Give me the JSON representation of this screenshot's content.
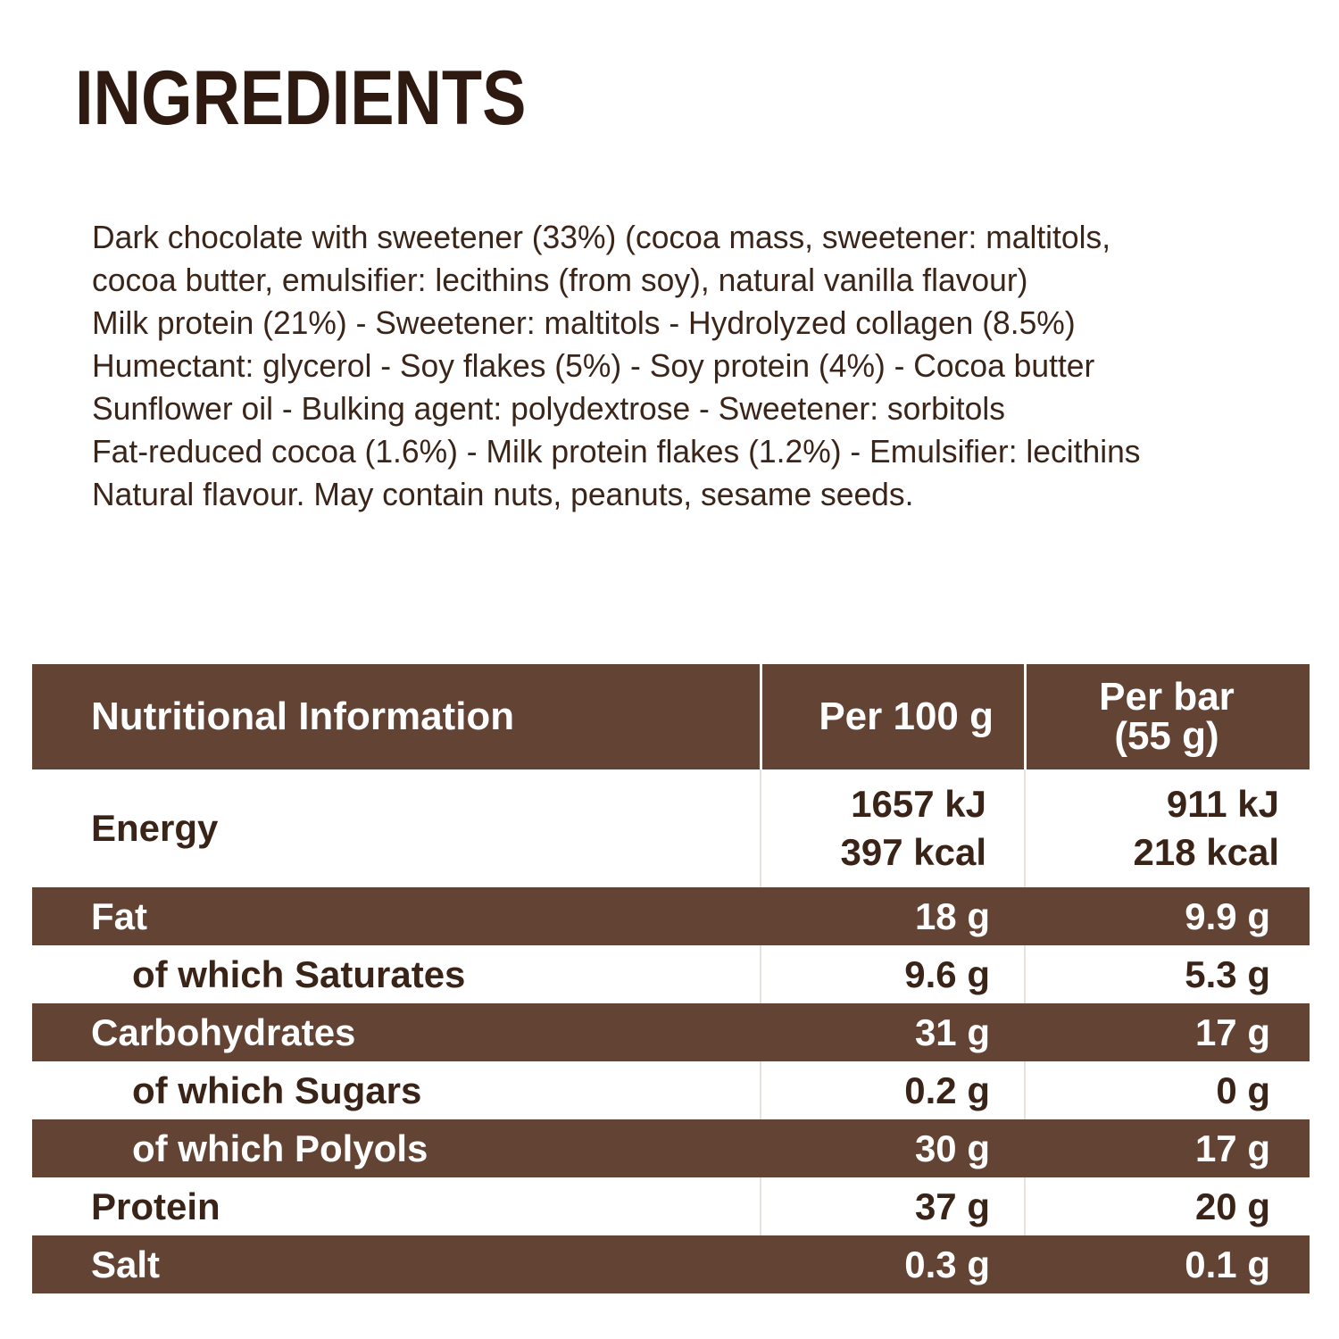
{
  "title": "INGREDIENTS",
  "ingredients_lines": [
    "Dark chocolate with sweetener (33%) (cocoa mass, sweetener: maltitols,",
    "cocoa butter, emulsifier: lecithins (from soy), natural vanilla flavour)",
    "Milk protein (21%) - Sweetener: maltitols - Hydrolyzed collagen (8.5%)",
    "Humectant: glycerol - Soy flakes (5%) - Soy protein (4%) - Cocoa butter",
    "Sunflower oil - Bulking agent: polydextrose - Sweetener: sorbitols",
    "Fat-reduced cocoa (1.6%) - Milk protein flakes (1.2%) - Emulsifier: lecithins",
    "Natural flavour. May contain nuts, peanuts, sesame seeds."
  ],
  "nutrition": {
    "header": {
      "label": "Nutritional Information",
      "per_100g": "Per 100 g",
      "per_bar_line1": "Per bar",
      "per_bar_line2": "(55 g)"
    },
    "energy": {
      "label": "Energy",
      "per_100g_kj": "1657 kJ",
      "per_100g_kcal": "397 kcal",
      "per_bar_kj": "911 kJ",
      "per_bar_kcal": "218 kcal"
    },
    "rows": [
      {
        "label": "Fat",
        "per_100g": "18 g",
        "per_bar": "9.9 g"
      },
      {
        "label": "of which Saturates",
        "per_100g": "9.6 g",
        "per_bar": "5.3 g"
      },
      {
        "label": "Carbohydrates",
        "per_100g": "31 g",
        "per_bar": "17 g"
      },
      {
        "label": "of which Sugars",
        "per_100g": "0.2 g",
        "per_bar": "0 g"
      },
      {
        "label": "of which Polyols",
        "per_100g": "30 g",
        "per_bar": "17 g"
      },
      {
        "label": "Protein",
        "per_100g": "37 g",
        "per_bar": "20 g"
      },
      {
        "label": "Salt",
        "per_100g": "0.3 g",
        "per_bar": "0.1 g"
      }
    ]
  },
  "colors": {
    "brown_band": "#634334",
    "title_text": "#2f1a11",
    "body_text": "#3b2519"
  }
}
